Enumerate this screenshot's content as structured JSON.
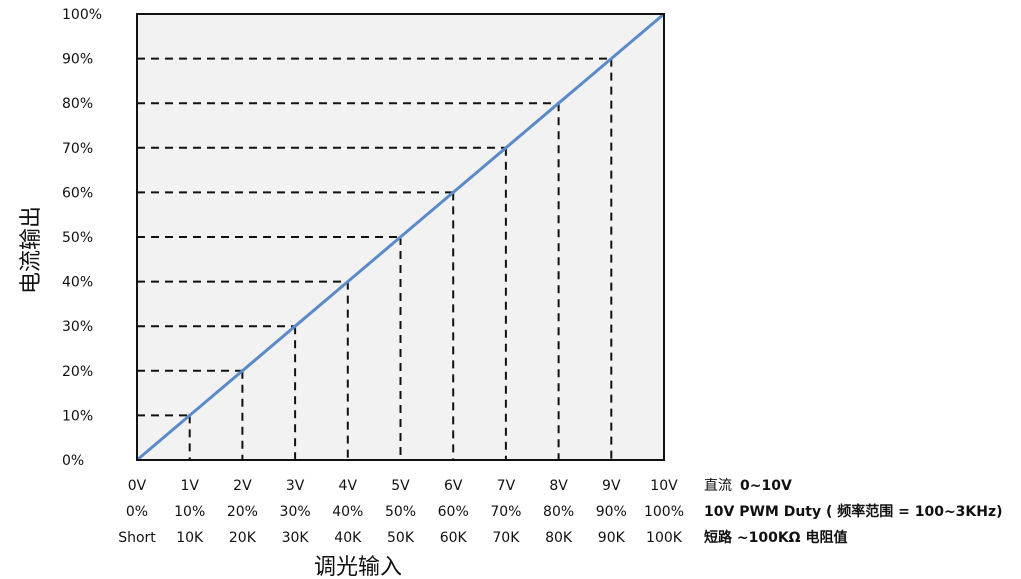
{
  "chart_data": {
    "type": "line",
    "xlabel": "调光输入",
    "ylabel": "电流输出",
    "ylim": [
      0,
      100
    ],
    "xlim": [
      0,
      10
    ],
    "grid": false,
    "y_ticks": [
      "0%",
      "10%",
      "20%",
      "30%",
      "40%",
      "50%",
      "60%",
      "70%",
      "80%",
      "90%",
      "100%"
    ],
    "x_tick_rows": [
      {
        "ticks": [
          "0V",
          "1V",
          "2V",
          "3V",
          "4V",
          "5V",
          "6V",
          "7V",
          "8V",
          "9V",
          "10V"
        ],
        "label_prefix": "直流",
        "label_rest": "0~10V"
      },
      {
        "ticks": [
          "0%",
          "10%",
          "20%",
          "30%",
          "40%",
          "50%",
          "60%",
          "70%",
          "80%",
          "90%",
          "100%"
        ],
        "label_prefix": "",
        "label_rest": "10V PWM Duty ( 频率范围 = 100~3KHz)"
      },
      {
        "ticks": [
          "Short",
          "10K",
          "20K",
          "30K",
          "40K",
          "50K",
          "60K",
          "70K",
          "80K",
          "90K",
          "100K"
        ],
        "label_prefix": "",
        "label_rest": "短路 ~100KΩ 电阻值"
      }
    ],
    "series": [
      {
        "x": [
          0,
          1,
          2,
          3,
          4,
          5,
          6,
          7,
          8,
          9,
          10
        ],
        "y": [
          0,
          10,
          20,
          30,
          40,
          50,
          60,
          70,
          80,
          90,
          100
        ]
      }
    ],
    "reference_lines": "dashed",
    "colors": {
      "line": "#5b8ac8",
      "plot_bg": "#f2f2f2",
      "frame": "#111111"
    }
  }
}
